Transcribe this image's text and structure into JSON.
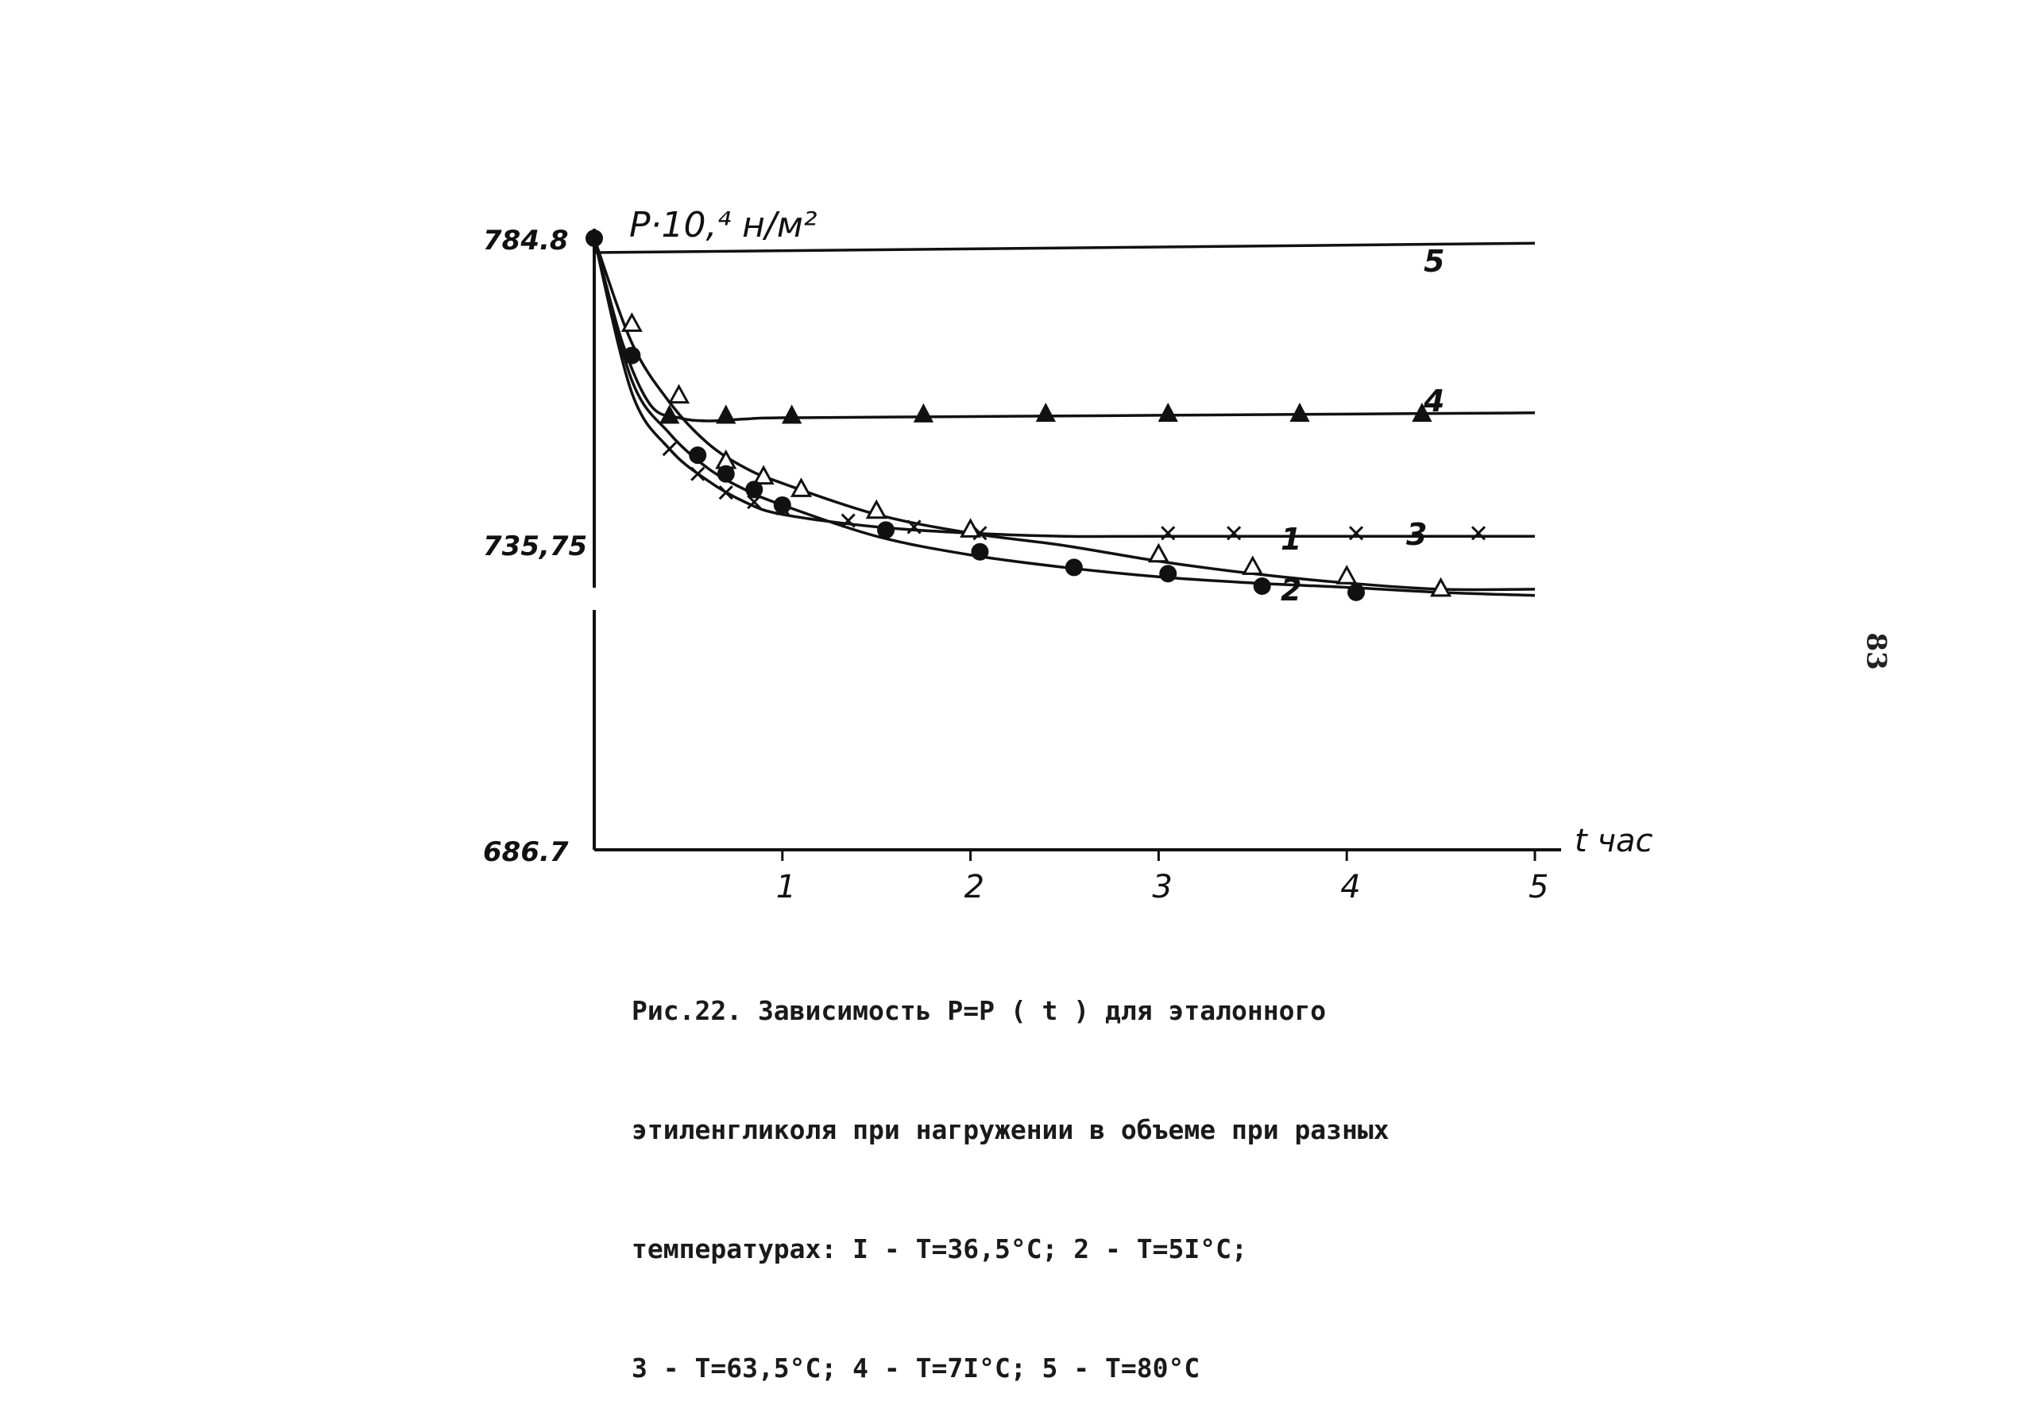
{
  "chart_data": {
    "type": "line",
    "ylabel": "P·10,⁴ н/м²",
    "xlabel": "t час",
    "x_ticks": [
      "1",
      "2",
      "3",
      "4",
      "5"
    ],
    "y_ticks": [
      "784.8",
      "735,75",
      "686.7"
    ],
    "xlim": [
      0,
      5
    ],
    "ylim": [
      686.7,
      784.8
    ],
    "grid": false,
    "series": [
      {
        "name": "1",
        "marker": "open-triangle",
        "x": [
          0.0,
          0.2,
          0.4,
          0.6,
          0.8,
          1.0,
          1.5,
          2.0,
          2.5,
          3.0,
          3.5,
          4.0,
          4.5,
          5.0
        ],
        "y": [
          784.8,
          768.0,
          758.5,
          752.0,
          748.0,
          745.5,
          740.5,
          737.5,
          735.5,
          733.0,
          731.0,
          729.5,
          728.5,
          728.5
        ],
        "points_x": [
          0.2,
          0.45,
          0.7,
          0.9,
          1.1,
          1.5,
          2.0,
          3.0,
          3.5,
          4.0,
          4.5
        ],
        "points_y": [
          771.0,
          759.5,
          749.0,
          746.5,
          744.5,
          741.0,
          738.0,
          734.0,
          732.0,
          730.5,
          728.5
        ]
      },
      {
        "name": "2",
        "marker": "filled-circle",
        "x": [
          0.0,
          0.2,
          0.4,
          0.6,
          0.8,
          1.0,
          1.5,
          2.0,
          2.5,
          3.0,
          3.5,
          4.0,
          4.5,
          5.0
        ],
        "y": [
          784.8,
          762.0,
          753.5,
          748.0,
          744.5,
          742.0,
          737.0,
          734.0,
          732.0,
          730.5,
          729.5,
          728.8,
          728.0,
          727.5
        ],
        "points_x": [
          0.0,
          0.2,
          0.55,
          0.7,
          0.85,
          1.0,
          1.55,
          2.05,
          2.55,
          3.05,
          3.55,
          4.05
        ],
        "points_y": [
          784.8,
          766.0,
          750.0,
          747.0,
          744.5,
          742.0,
          738.0,
          734.5,
          732.0,
          731.0,
          729.0,
          728.0
        ]
      },
      {
        "name": "3",
        "marker": "cross",
        "x": [
          0.0,
          0.2,
          0.4,
          0.6,
          0.8,
          1.0,
          1.5,
          2.0,
          2.5,
          3.0,
          4.0,
          5.0
        ],
        "y": [
          784.8,
          760.0,
          751.0,
          746.0,
          742.5,
          740.5,
          738.5,
          737.5,
          737.0,
          737.0,
          737.0,
          737.0
        ],
        "points_x": [
          0.4,
          0.55,
          0.7,
          0.85,
          1.0,
          1.35,
          1.7,
          2.05,
          3.05,
          3.4,
          4.05,
          4.7
        ],
        "points_y": [
          751.0,
          747.0,
          744.0,
          742.5,
          741.5,
          739.5,
          738.5,
          737.5,
          737.5,
          737.5,
          737.5,
          737.5
        ]
      },
      {
        "name": "4",
        "marker": "filled-triangle",
        "x": [
          0.0,
          0.15,
          0.3,
          0.45,
          0.6,
          0.8,
          1.0,
          2.0,
          3.0,
          4.0,
          5.0
        ],
        "y": [
          784.8,
          768.0,
          758.0,
          756.0,
          755.5,
          755.8,
          756.0,
          756.2,
          756.4,
          756.6,
          756.8
        ],
        "points_x": [
          0.4,
          0.7,
          1.05,
          1.75,
          2.4,
          3.05,
          3.75,
          4.4
        ],
        "points_y": [
          756.2,
          756.2,
          756.2,
          756.4,
          756.5,
          756.5,
          756.5,
          756.5
        ]
      },
      {
        "name": "5",
        "marker": "none",
        "x": [
          0.0,
          5.0
        ],
        "y": [
          782.5,
          784.0
        ],
        "points_x": [],
        "points_y": []
      }
    ]
  },
  "caption": {
    "lines": [
      "Рис.22. Зависимость P=P ( t ) для эталонного",
      "этиленгликоля при нагружении в объеме при разных",
      "температурах: I - T=36,5°C; 2 - T=5I°C;",
      "3 - T=63,5°C; 4 - T=7I°C; 5 - T=80°C"
    ]
  },
  "page_number": "83"
}
